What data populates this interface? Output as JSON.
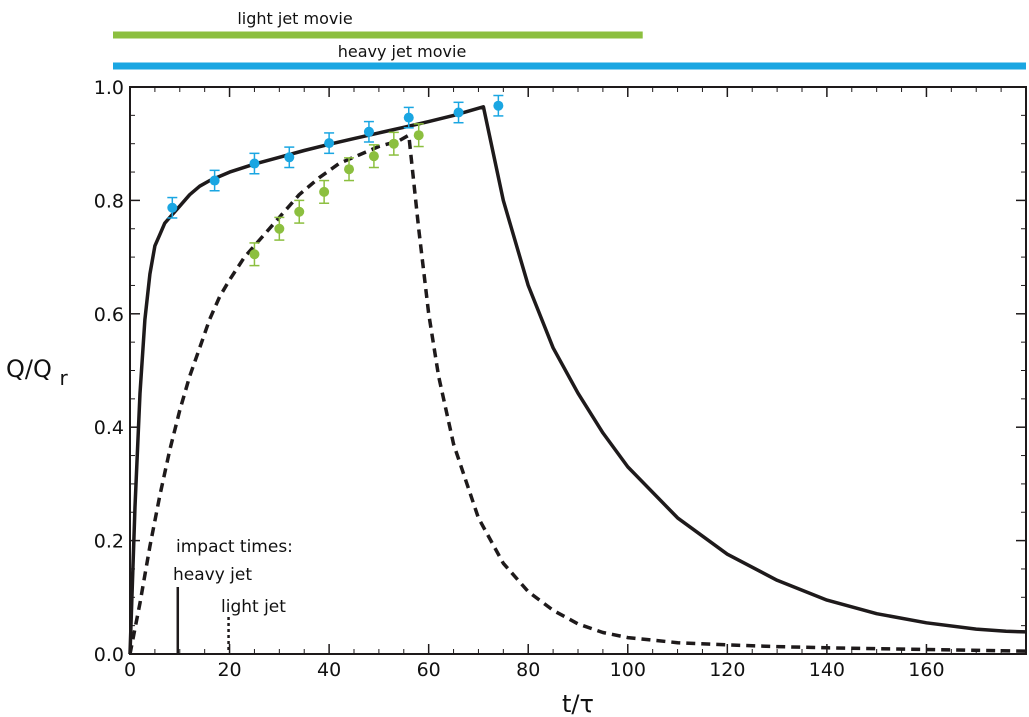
{
  "colors": {
    "light": "#8cbf3f",
    "heavy": "#1aa6e2",
    "curve": "#1e1a1b"
  },
  "chart_data": {
    "type": "line",
    "xlabel": "t/τ",
    "ylabel_main": "Q/Q",
    "ylabel_sub": "r",
    "xlim": [
      0,
      180
    ],
    "ylim": [
      0,
      1
    ],
    "xticks": [
      0,
      20,
      40,
      60,
      80,
      100,
      120,
      140,
      160
    ],
    "yticks": [
      0.0,
      0.2,
      0.4,
      0.6,
      0.8,
      1.0
    ],
    "xtick_labels": [
      "0",
      "20",
      "40",
      "60",
      "80",
      "100",
      "120",
      "140",
      "160"
    ],
    "ytick_labels": [
      "0.0",
      "0.2",
      "0.4",
      "0.6",
      "0.8",
      "1.0"
    ],
    "grid": false,
    "movie_bars": [
      {
        "label": "light jet movie",
        "x": [
          0,
          103
        ],
        "color": "#8cbf3f"
      },
      {
        "label": "heavy jet movie",
        "x": [
          0,
          180
        ],
        "color": "#1aa6e2"
      }
    ],
    "annotations": {
      "title": "impact times:",
      "heavy": {
        "label": "heavy jet",
        "x": 10,
        "style": "solid"
      },
      "light": {
        "label": "light jet",
        "x": 20,
        "style": "dotted"
      }
    },
    "series": [
      {
        "style": "solid",
        "color": "#1e1a1b",
        "x": [
          0,
          1,
          2,
          3,
          4,
          5,
          6,
          7,
          8,
          9,
          10,
          12,
          14,
          16,
          20,
          25,
          30,
          35,
          40,
          45,
          50,
          55,
          60,
          65,
          71,
          75,
          80,
          85,
          90,
          95,
          100,
          110,
          120,
          130,
          140,
          150,
          160,
          170,
          176,
          180
        ],
        "y": [
          0.0,
          0.26,
          0.46,
          0.59,
          0.67,
          0.72,
          0.74,
          0.76,
          0.77,
          0.78,
          0.79,
          0.81,
          0.825,
          0.835,
          0.85,
          0.864,
          0.876,
          0.888,
          0.899,
          0.909,
          0.919,
          0.929,
          0.939,
          0.95,
          0.965,
          0.8,
          0.65,
          0.54,
          0.46,
          0.39,
          0.33,
          0.24,
          0.176,
          0.13,
          0.095,
          0.071,
          0.055,
          0.044,
          0.04,
          0.039
        ]
      },
      {
        "style": "dashed",
        "color": "#1e1a1b",
        "x": [
          0,
          2,
          4,
          6,
          8,
          10,
          12,
          14,
          16,
          18,
          20,
          23,
          26,
          30,
          34,
          38,
          42,
          46,
          50,
          54,
          56,
          58,
          60,
          62,
          65,
          70,
          75,
          80,
          85,
          90,
          95,
          100,
          110,
          120,
          130,
          140,
          160,
          180
        ],
        "y": [
          0.0,
          0.09,
          0.19,
          0.28,
          0.36,
          0.43,
          0.49,
          0.54,
          0.59,
          0.63,
          0.66,
          0.7,
          0.73,
          0.77,
          0.81,
          0.84,
          0.865,
          0.88,
          0.895,
          0.905,
          0.915,
          0.75,
          0.6,
          0.49,
          0.37,
          0.24,
          0.16,
          0.11,
          0.077,
          0.053,
          0.038,
          0.029,
          0.02,
          0.016,
          0.013,
          0.011,
          0.008,
          0.005
        ]
      }
    ],
    "points": [
      {
        "color": "#1aa6e2",
        "x": [
          8.5,
          17,
          25,
          32,
          40,
          48,
          56,
          66,
          74
        ],
        "y": [
          0.787,
          0.835,
          0.865,
          0.876,
          0.901,
          0.921,
          0.946,
          0.955,
          0.967
        ],
        "err": [
          0.018,
          0.018,
          0.018,
          0.018,
          0.018,
          0.018,
          0.018,
          0.018,
          0.018
        ]
      },
      {
        "color": "#8cbf3f",
        "x": [
          25,
          30,
          34,
          39,
          44,
          49,
          53,
          58
        ],
        "y": [
          0.705,
          0.75,
          0.78,
          0.815,
          0.855,
          0.878,
          0.9,
          0.915
        ],
        "err": [
          0.02,
          0.02,
          0.02,
          0.02,
          0.02,
          0.02,
          0.02,
          0.02
        ]
      }
    ]
  }
}
